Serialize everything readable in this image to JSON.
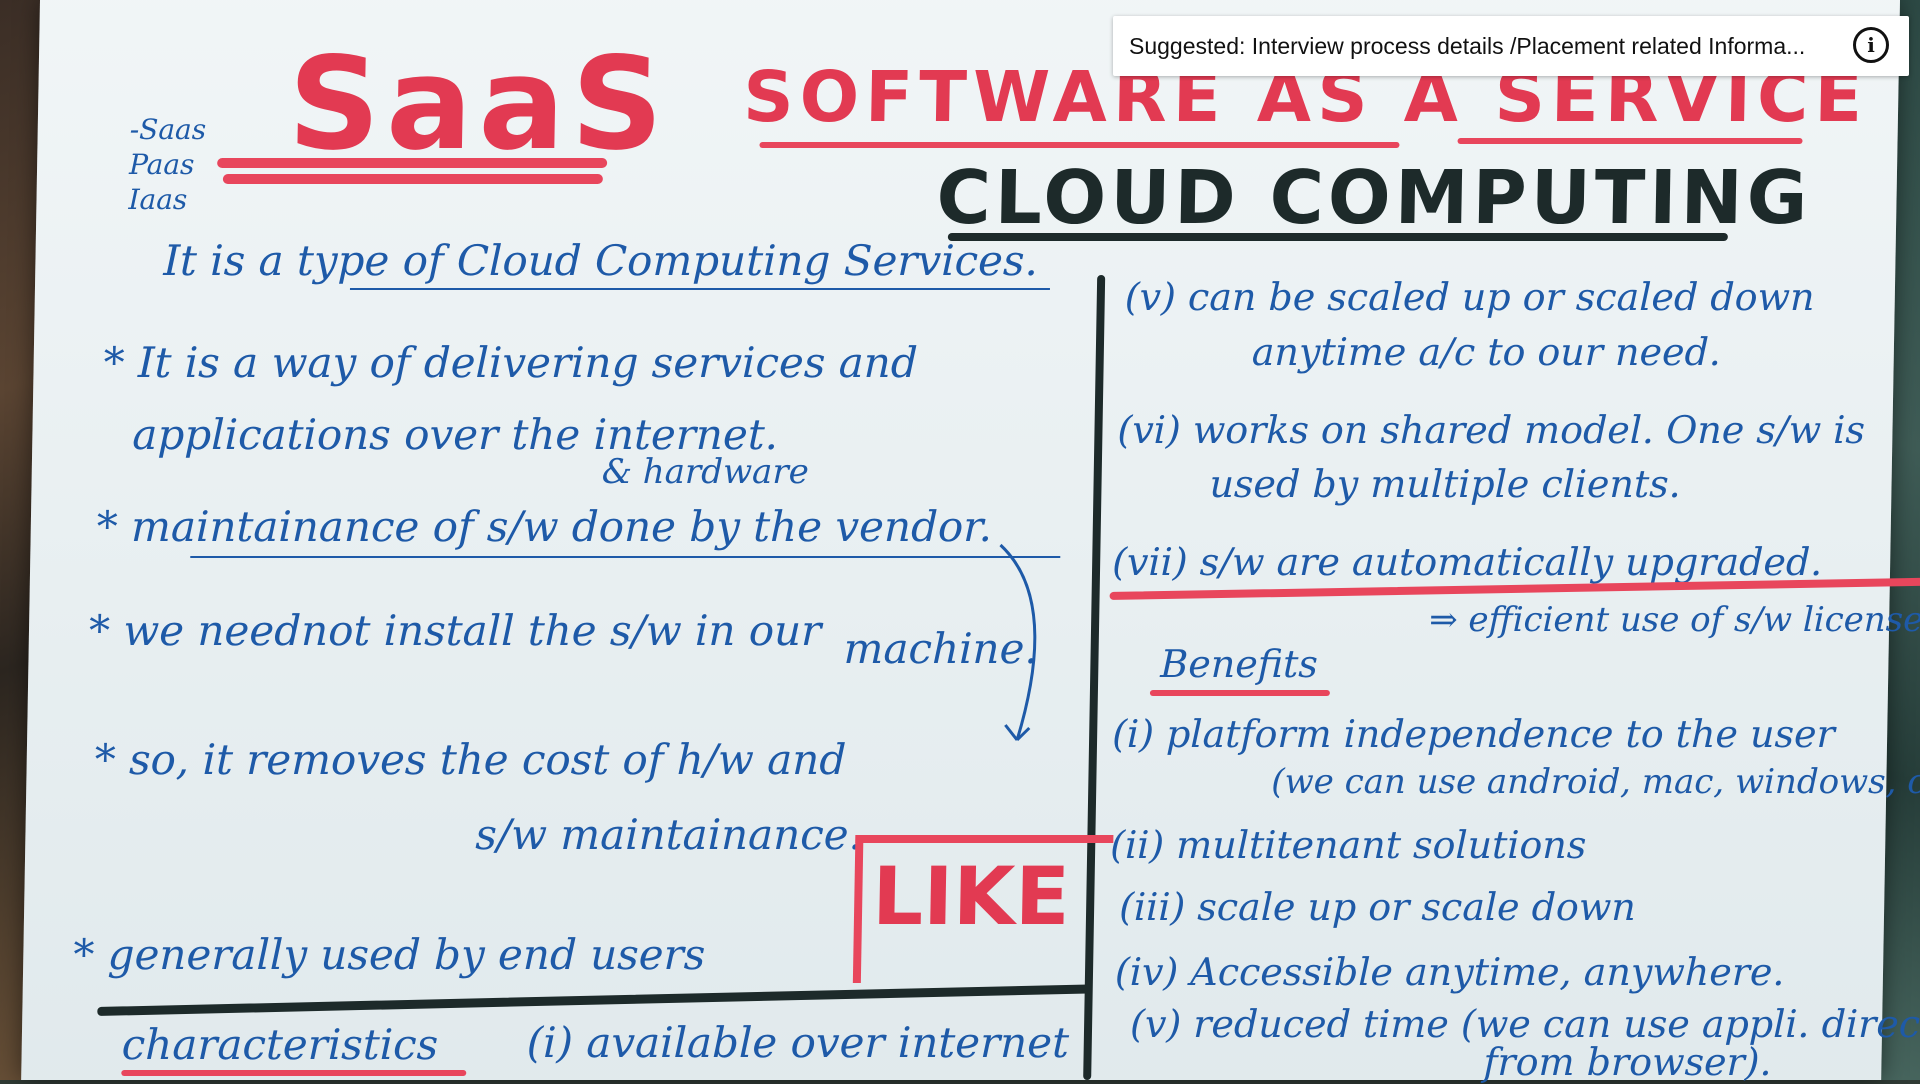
{
  "video": {
    "titles": {
      "saas": "SaaS",
      "software_as_a_service": "SOFTWARE AS A SERVICE",
      "cloud_computing": "CLOUD COMPUTING"
    },
    "side_list": "-Saas\nPaas\nIaas",
    "left_column": {
      "intro": "It is a type of Cloud Computing Services.",
      "p1_line1": "* It is a way of delivering services and",
      "p1_line2": "applications over the internet.",
      "p2_insert": "& hardware",
      "p2_line1": "* maintainance of s/w done by the vendor.",
      "p3_line1": "* we neednot install the s/w in our",
      "p3_line2": "machine.",
      "p4_line1": "* so, it removes the cost of h/w and",
      "p4_line2": "s/w maintainance.",
      "p5_line1": "* generally used by end users",
      "characteristics": "characteristics",
      "char_item": "(i) available over internet"
    },
    "right_column": {
      "v_line1": "(v) can be scaled up or scaled down",
      "v_line2": "anytime a/c to our need.",
      "vi_line1": "(vi) works on shared model. One s/w is",
      "vi_line2": "used by multiple clients.",
      "vii_line1": "(vii) s/w are automatically upgraded.",
      "efficient": "⇒ efficient use of s/w licenses",
      "benefits": "Benefits",
      "b1_line1": "(i) platform independence to the user",
      "b1_line2": "(we can use android, mac, windows, ch",
      "b2": "(ii) multitenant solutions",
      "b3": "(iii) scale up or scale down",
      "b4": "(iv) Accessible anytime, anywhere.",
      "b5_line1": "(v) reduced time (we can use appli. directl",
      "b5_line2": "from browser)."
    },
    "like": "LIKE"
  },
  "suggestion": {
    "text": "Suggested: Interview process details /Placement related Informa..."
  },
  "icons": {
    "info": "info-icon"
  },
  "colors": {
    "ink_blue": "#1e5aa8",
    "ink_red": "#e23a52",
    "ink_black": "#1d2a2a",
    "paper": "#e9f0f2"
  }
}
